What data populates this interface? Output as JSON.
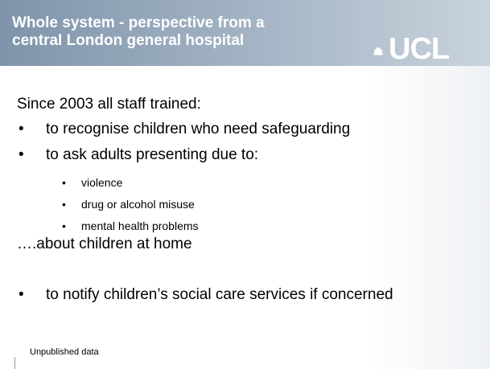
{
  "header": {
    "title_lines": [
      "Whole system -  perspective from a",
      "central London general hospital"
    ],
    "logo": "UCL"
  },
  "body": {
    "intro": "Since 2003 all staff trained:",
    "bullets": [
      "to recognise children who need safeguarding",
      "to ask adults presenting due to:"
    ],
    "sub_bullets": [
      "violence",
      "drug or alcohol misuse",
      "mental health problems"
    ],
    "continuation": "….about children at home",
    "final_bullet": "to notify children’s social care services if concerned"
  },
  "footer": "Unpublished data"
}
